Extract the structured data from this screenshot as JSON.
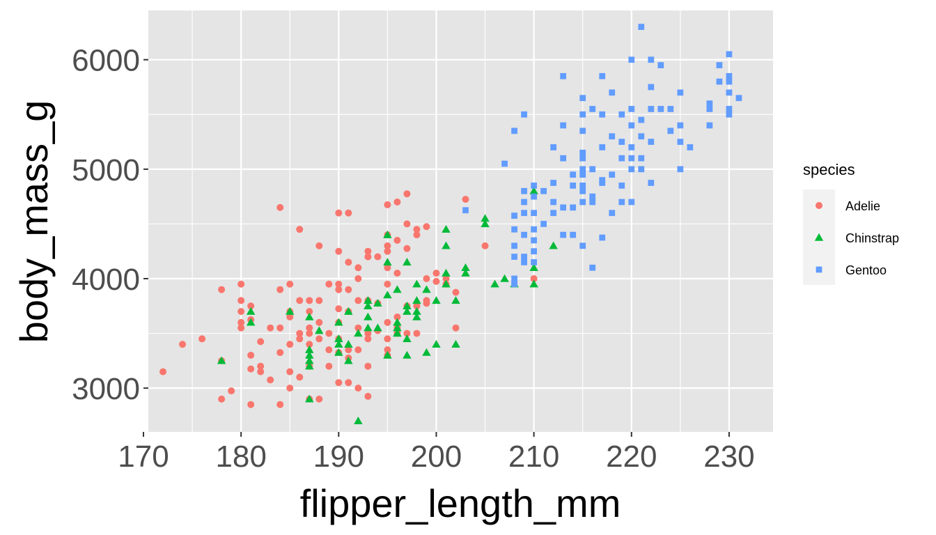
{
  "chart_data": {
    "type": "scatter",
    "title": "",
    "xlabel": "flipper_length_mm",
    "ylabel": "body_mass_g",
    "xlim": [
      170.5,
      234.5
    ],
    "ylim": [
      2600,
      6450
    ],
    "xticks": [
      170,
      180,
      190,
      200,
      210,
      220,
      230
    ],
    "yticks": [
      3000,
      4000,
      5000,
      6000
    ],
    "grid": true,
    "panel_background": "#e5e5e5",
    "legend": {
      "title": "species",
      "placement": "right"
    },
    "series": [
      {
        "name": "Adelie",
        "shape": "circle",
        "color": "#f8766d",
        "points": [
          [
            172,
            3150
          ],
          [
            174,
            3400
          ],
          [
            176,
            3450
          ],
          [
            178,
            3900
          ],
          [
            178,
            3250
          ],
          [
            178,
            2900
          ],
          [
            179,
            2975
          ],
          [
            180,
            3950
          ],
          [
            180,
            3800
          ],
          [
            180,
            3700
          ],
          [
            180,
            3600
          ],
          [
            180,
            3550
          ],
          [
            181,
            3750
          ],
          [
            181,
            3625
          ],
          [
            181,
            3300
          ],
          [
            181,
            3175
          ],
          [
            181,
            2850
          ],
          [
            182,
            3425
          ],
          [
            182,
            3200
          ],
          [
            182,
            3150
          ],
          [
            183,
            3075
          ],
          [
            183,
            3550
          ],
          [
            184,
            4650
          ],
          [
            184,
            3900
          ],
          [
            184,
            3550
          ],
          [
            184,
            3325
          ],
          [
            184,
            2850
          ],
          [
            185,
            3950
          ],
          [
            185,
            3700
          ],
          [
            185,
            3650
          ],
          [
            185,
            3400
          ],
          [
            185,
            3150
          ],
          [
            185,
            3000
          ],
          [
            186,
            4450
          ],
          [
            186,
            3800
          ],
          [
            186,
            3500
          ],
          [
            186,
            3450
          ],
          [
            186,
            3100
          ],
          [
            187,
            3800
          ],
          [
            187,
            3700
          ],
          [
            187,
            3550
          ],
          [
            187,
            3500
          ],
          [
            187,
            3400
          ],
          [
            187,
            3200
          ],
          [
            187,
            2900
          ],
          [
            188,
            4300
          ],
          [
            188,
            3800
          ],
          [
            188,
            3600
          ],
          [
            188,
            3450
          ],
          [
            188,
            2900
          ],
          [
            189,
            3950
          ],
          [
            189,
            3500
          ],
          [
            189,
            3350
          ],
          [
            189,
            3200
          ],
          [
            190,
            4600
          ],
          [
            190,
            4250
          ],
          [
            190,
            3950
          ],
          [
            190,
            3900
          ],
          [
            190,
            3725
          ],
          [
            190,
            3600
          ],
          [
            190,
            3450
          ],
          [
            190,
            3325
          ],
          [
            190,
            3050
          ],
          [
            191,
            4600
          ],
          [
            191,
            4150
          ],
          [
            191,
            3900
          ],
          [
            191,
            3700
          ],
          [
            191,
            3350
          ],
          [
            191,
            3275
          ],
          [
            191,
            3050
          ],
          [
            192,
            4100
          ],
          [
            192,
            4000
          ],
          [
            192,
            3800
          ],
          [
            192,
            3550
          ],
          [
            192,
            3350
          ],
          [
            192,
            3000
          ],
          [
            193,
            4250
          ],
          [
            193,
            4200
          ],
          [
            193,
            3800
          ],
          [
            193,
            3500
          ],
          [
            193,
            3450
          ],
          [
            193,
            3200
          ],
          [
            193,
            2925
          ],
          [
            194,
            4200
          ],
          [
            194,
            3775
          ],
          [
            194,
            3525
          ],
          [
            195,
            4675
          ],
          [
            195,
            4400
          ],
          [
            195,
            4300
          ],
          [
            195,
            4250
          ],
          [
            195,
            4100
          ],
          [
            195,
            3950
          ],
          [
            195,
            3600
          ],
          [
            195,
            3450
          ],
          [
            195,
            3350
          ],
          [
            195,
            3300
          ],
          [
            196,
            4700
          ],
          [
            196,
            4350
          ],
          [
            196,
            4050
          ],
          [
            196,
            3650
          ],
          [
            196,
            3550
          ],
          [
            196,
            3500
          ],
          [
            197,
            4775
          ],
          [
            197,
            4500
          ],
          [
            197,
            4275
          ],
          [
            197,
            3750
          ],
          [
            197,
            3500
          ],
          [
            198,
            4450
          ],
          [
            198,
            4400
          ],
          [
            198,
            3750
          ],
          [
            198,
            3500
          ],
          [
            199,
            4475
          ],
          [
            199,
            4000
          ],
          [
            199,
            3800
          ],
          [
            199,
            3775
          ],
          [
            200,
            4050
          ],
          [
            200,
            3975
          ],
          [
            201,
            4000
          ],
          [
            201,
            3950
          ],
          [
            202,
            3875
          ],
          [
            202,
            3550
          ],
          [
            203,
            4725
          ],
          [
            205,
            4300
          ],
          [
            210,
            4000
          ]
        ]
      },
      {
        "name": "Chinstrap",
        "shape": "triangle",
        "color": "#00ba38",
        "points": [
          [
            178,
            3250
          ],
          [
            181,
            3700
          ],
          [
            181,
            3600
          ],
          [
            185,
            3700
          ],
          [
            187,
            3650
          ],
          [
            187,
            3350
          ],
          [
            187,
            3300
          ],
          [
            187,
            3250
          ],
          [
            187,
            3200
          ],
          [
            187,
            2900
          ],
          [
            188,
            3525
          ],
          [
            190,
            3600
          ],
          [
            190,
            3450
          ],
          [
            190,
            3400
          ],
          [
            190,
            3325
          ],
          [
            191,
            3700
          ],
          [
            191,
            3400
          ],
          [
            191,
            3250
          ],
          [
            192,
            3500
          ],
          [
            192,
            2700
          ],
          [
            193,
            3800
          ],
          [
            193,
            3750
          ],
          [
            193,
            3650
          ],
          [
            193,
            3550
          ],
          [
            194,
            3775
          ],
          [
            194,
            3550
          ],
          [
            195,
            4400
          ],
          [
            195,
            4150
          ],
          [
            195,
            3850
          ],
          [
            195,
            3300
          ],
          [
            196,
            3900
          ],
          [
            196,
            3600
          ],
          [
            196,
            3550
          ],
          [
            196,
            3500
          ],
          [
            197,
            4150
          ],
          [
            197,
            3750
          ],
          [
            197,
            3700
          ],
          [
            197,
            3450
          ],
          [
            197,
            3300
          ],
          [
            198,
            3950
          ],
          [
            198,
            3800
          ],
          [
            198,
            3700
          ],
          [
            198,
            3650
          ],
          [
            199,
            3900
          ],
          [
            199,
            3325
          ],
          [
            200,
            3800
          ],
          [
            200,
            3400
          ],
          [
            201,
            4450
          ],
          [
            201,
            4300
          ],
          [
            201,
            4050
          ],
          [
            201,
            3950
          ],
          [
            202,
            3800
          ],
          [
            202,
            3400
          ],
          [
            203,
            4100
          ],
          [
            203,
            4050
          ],
          [
            205,
            4550
          ],
          [
            205,
            4500
          ],
          [
            206,
            3950
          ],
          [
            207,
            4000
          ],
          [
            208,
            3950
          ],
          [
            210,
            4800
          ],
          [
            210,
            4100
          ],
          [
            210,
            3950
          ],
          [
            212,
            4300
          ]
        ]
      },
      {
        "name": "Gentoo",
        "shape": "square",
        "color": "#619cff",
        "points": [
          [
            203,
            4625
          ],
          [
            207,
            5050
          ],
          [
            208,
            5350
          ],
          [
            208,
            4575
          ],
          [
            208,
            4450
          ],
          [
            208,
            4300
          ],
          [
            208,
            4200
          ],
          [
            208,
            4000
          ],
          [
            208,
            3950
          ],
          [
            209,
            5500
          ],
          [
            209,
            4800
          ],
          [
            209,
            4700
          ],
          [
            209,
            4600
          ],
          [
            209,
            4400
          ],
          [
            209,
            4200
          ],
          [
            209,
            4150
          ],
          [
            210,
            4850
          ],
          [
            210,
            4750
          ],
          [
            210,
            4600
          ],
          [
            210,
            4450
          ],
          [
            210,
            4350
          ],
          [
            210,
            4250
          ],
          [
            210,
            4150
          ],
          [
            211,
            4800
          ],
          [
            211,
            4500
          ],
          [
            212,
            5200
          ],
          [
            212,
            4875
          ],
          [
            212,
            4700
          ],
          [
            212,
            4600
          ],
          [
            213,
            5850
          ],
          [
            213,
            5400
          ],
          [
            213,
            5100
          ],
          [
            213,
            4650
          ],
          [
            213,
            4400
          ],
          [
            214,
            4950
          ],
          [
            214,
            4850
          ],
          [
            214,
            4650
          ],
          [
            214,
            4400
          ],
          [
            215,
            5650
          ],
          [
            215,
            5500
          ],
          [
            215,
            5350
          ],
          [
            215,
            5150
          ],
          [
            215,
            5100
          ],
          [
            215,
            5000
          ],
          [
            215,
            4950
          ],
          [
            215,
            4850
          ],
          [
            215,
            4800
          ],
          [
            215,
            4700
          ],
          [
            215,
            4300
          ],
          [
            216,
            5550
          ],
          [
            216,
            5000
          ],
          [
            216,
            4750
          ],
          [
            216,
            4700
          ],
          [
            216,
            4100
          ],
          [
            217,
            5850
          ],
          [
            217,
            5500
          ],
          [
            217,
            5200
          ],
          [
            217,
            4900
          ],
          [
            217,
            4875
          ],
          [
            217,
            4375
          ],
          [
            218,
            5700
          ],
          [
            218,
            5300
          ],
          [
            218,
            4950
          ],
          [
            218,
            4600
          ],
          [
            219,
            5500
          ],
          [
            219,
            5250
          ],
          [
            219,
            5100
          ],
          [
            219,
            4850
          ],
          [
            219,
            4700
          ],
          [
            220,
            6000
          ],
          [
            220,
            5550
          ],
          [
            220,
            5400
          ],
          [
            220,
            5200
          ],
          [
            220,
            5100
          ],
          [
            220,
            5000
          ],
          [
            220,
            4700
          ],
          [
            221,
            6300
          ],
          [
            221,
            5450
          ],
          [
            221,
            5300
          ],
          [
            221,
            5100
          ],
          [
            221,
            5000
          ],
          [
            222,
            6000
          ],
          [
            222,
            5750
          ],
          [
            222,
            5550
          ],
          [
            222,
            5250
          ],
          [
            222,
            4875
          ],
          [
            223,
            5950
          ],
          [
            223,
            5550
          ],
          [
            224,
            5550
          ],
          [
            224,
            5350
          ],
          [
            225,
            5700
          ],
          [
            225,
            5400
          ],
          [
            225,
            5250
          ],
          [
            225,
            5000
          ],
          [
            226,
            5200
          ],
          [
            228,
            5600
          ],
          [
            228,
            5550
          ],
          [
            228,
            5400
          ],
          [
            229,
            5950
          ],
          [
            229,
            5800
          ],
          [
            230,
            6050
          ],
          [
            230,
            5850
          ],
          [
            230,
            5800
          ],
          [
            230,
            5700
          ],
          [
            230,
            5550
          ],
          [
            230,
            5500
          ],
          [
            231,
            5650
          ]
        ]
      }
    ]
  }
}
